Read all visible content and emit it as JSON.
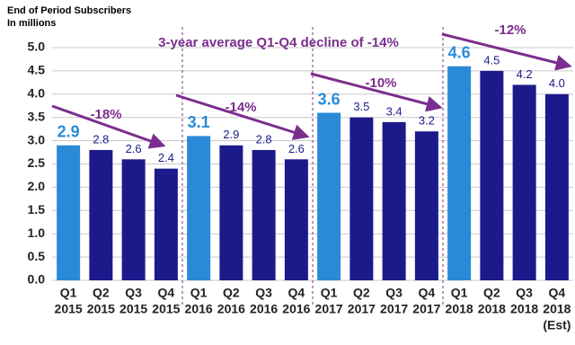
{
  "chart_data": {
    "type": "bar",
    "title": [
      "End of Period Subscribers",
      "In millions"
    ],
    "categories": [
      [
        "Q1",
        "2015"
      ],
      [
        "Q2",
        "2015"
      ],
      [
        "Q3",
        "2015"
      ],
      [
        "Q4",
        "2015"
      ],
      [
        "Q1",
        "2016"
      ],
      [
        "Q2",
        "2016"
      ],
      [
        "Q3",
        "2016"
      ],
      [
        "Q4",
        "2016"
      ],
      [
        "Q1",
        "2017"
      ],
      [
        "Q2",
        "2017"
      ],
      [
        "Q3",
        "2017"
      ],
      [
        "Q4",
        "2017"
      ],
      [
        "Q1",
        "2018"
      ],
      [
        "Q2",
        "2018"
      ],
      [
        "Q3",
        "2018"
      ],
      [
        "Q4",
        "2018",
        "(Est)"
      ]
    ],
    "values": [
      2.9,
      2.8,
      2.6,
      2.4,
      3.1,
      2.9,
      2.8,
      2.6,
      3.6,
      3.5,
      3.4,
      3.2,
      4.6,
      4.5,
      4.2,
      4.0
    ],
    "value_labels": [
      "2.9",
      "2.8",
      "2.6",
      "2.4",
      "3.1",
      "2.9",
      "2.8",
      "2.6",
      "3.6",
      "3.5",
      "3.4",
      "3.2",
      "4.6",
      "4.5",
      "4.2",
      "4.0"
    ],
    "colors": [
      "#2a8ad8",
      "#1c1a8a",
      "#1c1a8a",
      "#1c1a8a",
      "#2a8ad8",
      "#1c1a8a",
      "#1c1a8a",
      "#1c1a8a",
      "#2a8ad8",
      "#1c1a8a",
      "#1c1a8a",
      "#1c1a8a",
      "#2a8ad8",
      "#1c1a8a",
      "#1c1a8a",
      "#1c1a8a"
    ],
    "ylim": [
      0,
      5
    ],
    "yticks": [
      {
        "value": 0,
        "label": "0.0"
      },
      {
        "value": 0.5,
        "label": "0.5"
      },
      {
        "value": 1,
        "label": "1.0"
      },
      {
        "value": 1.5,
        "label": "1.5"
      },
      {
        "value": 2,
        "label": "2.0"
      },
      {
        "value": 2.5,
        "label": "2.5"
      },
      {
        "value": 3,
        "label": "3.0"
      },
      {
        "value": 3.5,
        "label": "3.5"
      },
      {
        "value": 4,
        "label": "4.0"
      },
      {
        "value": 4.5,
        "label": "4.5"
      },
      {
        "value": 5,
        "label": "5.0"
      }
    ],
    "grid": true,
    "annotations": [
      "3-year average Q1-Q4 decline of -14%",
      "-18%",
      "-14%",
      "-10%",
      "-12%"
    ]
  }
}
